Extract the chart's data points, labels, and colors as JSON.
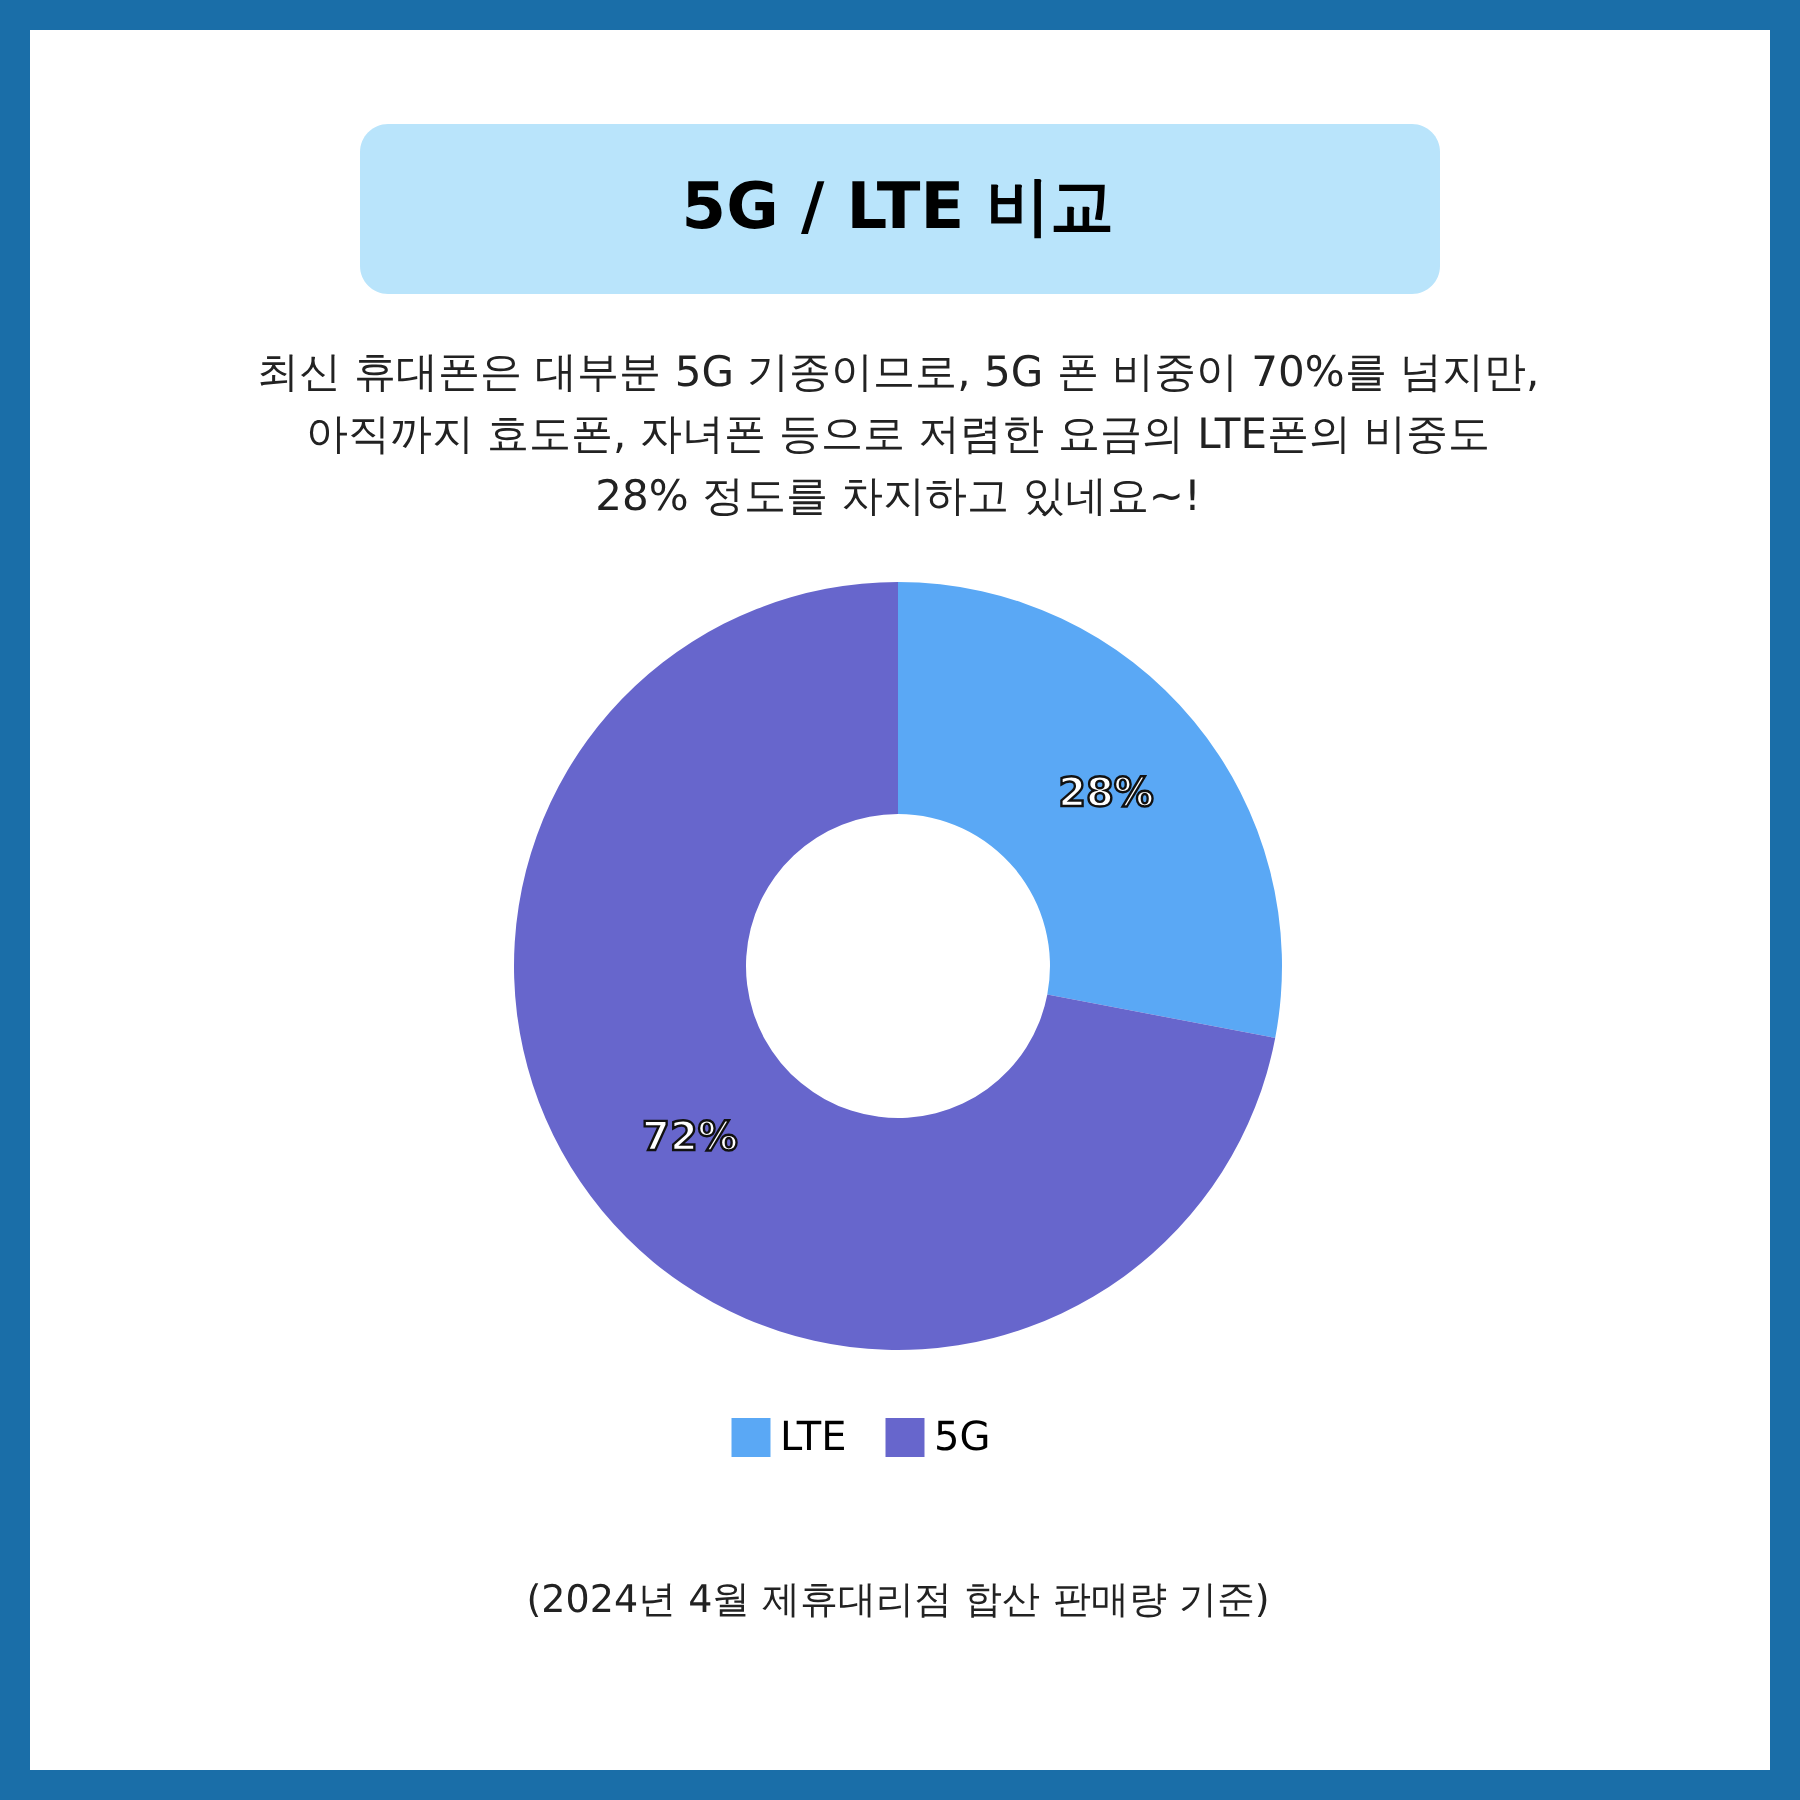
{
  "chart_data": {
    "type": "donut",
    "title": "5G / LTE 비교",
    "subtitle": "최신 휴대폰은 대부분 5G 기종이므로, 5G 폰 비중이 70%를 넘지만,\n아직까지 효도폰, 자녀폰 등으로 저렴한 요금의 LTE폰의 비중도\n28% 정도를 차지하고 있네요~!",
    "categories": [
      "LTE",
      "5G"
    ],
    "values": [
      28,
      72
    ],
    "colors": [
      "#5aa8f5",
      "#6766cc"
    ],
    "value_labels": [
      "28%",
      "72%"
    ],
    "legend": "bottom",
    "annotations": [
      "(2024년 4월 제휴대리점 합산 판매량 기준)"
    ]
  }
}
